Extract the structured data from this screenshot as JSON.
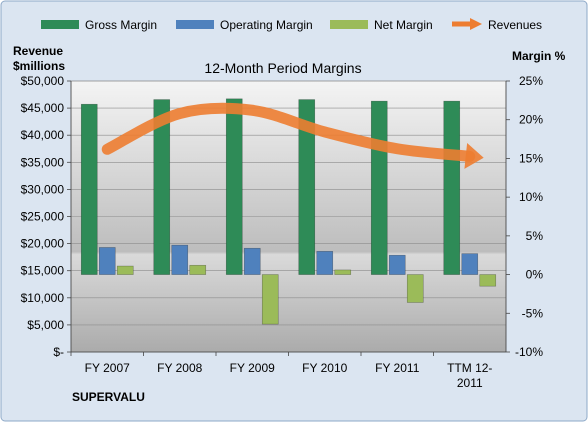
{
  "colors": {
    "gross": "#2e8b57",
    "operating": "#4f81bd",
    "net": "#9bbb59",
    "revenues": "#ed7d31",
    "frame_bg": "#dbe5f1"
  },
  "chart_data": {
    "type": "bar",
    "title": "12-Month Period Margins",
    "company_label": "SUPERVALU",
    "categories": [
      "FY 2007",
      "FY 2008",
      "FY 2009",
      "FY 2010",
      "FY 2011",
      "TTM 12-2011"
    ],
    "category_lines": [
      [
        "FY 2007"
      ],
      [
        "FY 2008"
      ],
      [
        "FY 2009"
      ],
      [
        "FY 2010"
      ],
      [
        "FY 2011"
      ],
      [
        "TTM 12-",
        "2011"
      ]
    ],
    "left_axis": {
      "label_lines": [
        "Revenue",
        "$millions"
      ],
      "range": [
        0,
        50000
      ],
      "ticks": [
        0,
        5000,
        10000,
        15000,
        20000,
        25000,
        30000,
        35000,
        40000,
        45000,
        50000
      ],
      "tick_labels": [
        "$-",
        "$5,000",
        "$10,000",
        "$15,000",
        "$20,000",
        "$25,000",
        "$30,000",
        "$35,000",
        "$40,000",
        "$45,000",
        "$50,000"
      ]
    },
    "right_axis": {
      "label": "Margin %",
      "range": [
        -10,
        25
      ],
      "ticks": [
        -10,
        -5,
        0,
        5,
        10,
        15,
        20,
        25
      ],
      "tick_labels": [
        "-10%",
        "-5%",
        "0%",
        "5%",
        "10%",
        "15%",
        "20%",
        "25%"
      ]
    },
    "series": [
      {
        "name": "Gross Margin",
        "axis": "right",
        "kind": "bar",
        "values": [
          22.0,
          22.6,
          22.7,
          22.6,
          22.4,
          22.4
        ]
      },
      {
        "name": "Operating Margin",
        "axis": "right",
        "kind": "bar",
        "values": [
          3.5,
          3.8,
          3.4,
          3.0,
          2.5,
          2.7
        ]
      },
      {
        "name": "Net Margin",
        "axis": "right",
        "kind": "bar",
        "values": [
          1.1,
          1.2,
          -6.4,
          0.6,
          -3.6,
          -1.5
        ]
      },
      {
        "name": "Revenues",
        "axis": "left",
        "kind": "line",
        "values": [
          37400,
          44000,
          44600,
          40600,
          37500,
          36100
        ]
      }
    ],
    "legend_position": "top",
    "grid": true
  }
}
